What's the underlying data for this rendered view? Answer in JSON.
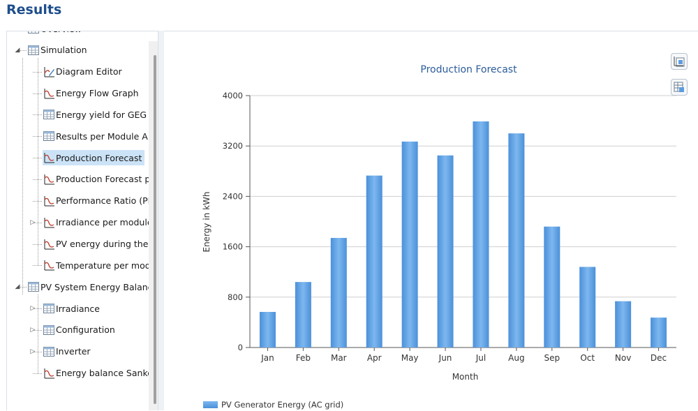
{
  "page": {
    "title": "Results"
  },
  "tree": {
    "items": [
      {
        "label": "Overview",
        "icon": "table-icon",
        "expander": "",
        "selected": false
      },
      {
        "label": "Simulation",
        "icon": "table-icon",
        "expander": "expanded",
        "selected": false
      },
      {
        "label": "Diagram Editor",
        "icon": "diagram-editor-icon",
        "expander": "",
        "selected": false
      },
      {
        "label": "Energy Flow Graph",
        "icon": "graph-icon",
        "expander": "",
        "selected": false
      },
      {
        "label": "Energy yield for GEG",
        "icon": "table-icon",
        "expander": "",
        "selected": false
      },
      {
        "label": "Results per Module Ar",
        "icon": "table-icon",
        "expander": "",
        "selected": false
      },
      {
        "label": "Production Forecast",
        "icon": "graph-icon",
        "expander": "",
        "selected": true
      },
      {
        "label": "Production Forecast p",
        "icon": "graph-icon",
        "expander": "",
        "selected": false
      },
      {
        "label": "Performance Ratio (PF",
        "icon": "graph-icon",
        "expander": "",
        "selected": false
      },
      {
        "label": "Irradiance per module",
        "icon": "graph-icon",
        "expander": "collapsed",
        "selected": false
      },
      {
        "label": "PV energy during the",
        "icon": "graph-icon",
        "expander": "",
        "selected": false
      },
      {
        "label": "Temperature per mod",
        "icon": "graph-icon",
        "expander": "",
        "selected": false
      },
      {
        "label": "PV System Energy Balance",
        "icon": "table-icon",
        "expander": "expanded",
        "selected": false
      },
      {
        "label": "Irradiance",
        "icon": "table-icon",
        "expander": "collapsed",
        "selected": false
      },
      {
        "label": "Configuration",
        "icon": "table-icon",
        "expander": "collapsed",
        "selected": false
      },
      {
        "label": "Inverter",
        "icon": "table-icon",
        "expander": "collapsed",
        "selected": false
      },
      {
        "label": "Energy balance Sanke",
        "icon": "graph-icon",
        "expander": "",
        "selected": false
      }
    ]
  },
  "toolbar": {
    "buttons": [
      {
        "icon": "chart-export-icon"
      },
      {
        "icon": "table-export-icon"
      }
    ]
  },
  "colors": {
    "bar_top": "#7db7ef",
    "bar_bottom": "#4b90d9",
    "title": "#2b5c99",
    "heading": "#1e4e8c",
    "selection": "#cce3f7"
  },
  "chart_data": {
    "type": "bar",
    "title": "Production Forecast",
    "xlabel": "Month",
    "ylabel": "Energy in kWh",
    "categories": [
      "Jan",
      "Feb",
      "Mar",
      "Apr",
      "May",
      "Jun",
      "Jul",
      "Aug",
      "Sep",
      "Oct",
      "Nov",
      "Dec"
    ],
    "series": [
      {
        "name": "PV Generator Energy (AC grid)",
        "values": [
          565,
          1040,
          1740,
          2730,
          3270,
          3050,
          3590,
          3400,
          1920,
          1280,
          735,
          475
        ]
      }
    ],
    "ylim": [
      0,
      4000
    ],
    "yticks": [
      0,
      800,
      1600,
      2400,
      3200,
      4000
    ],
    "grid": true,
    "legend": "bottom-left"
  }
}
